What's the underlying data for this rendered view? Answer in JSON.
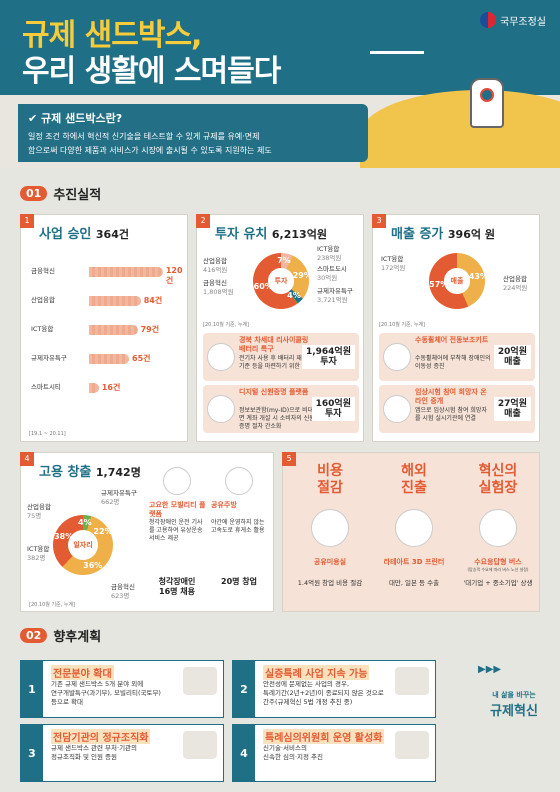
{
  "header": {
    "title_line1": "규제 샌드박스,",
    "title_line2": "우리 생활에 스며들다",
    "logo": "국무조정실",
    "q": "규제 샌드박스란?",
    "desc1": "일정 조건 하에서 혁신적 신기술을 테스트할 수 있게 규제를 유예·면제",
    "desc2": "함으로써 다양한 제품과 서비스가 시장에 출시될 수 있도록 지원하는 제도"
  },
  "section1": {
    "num": "01",
    "title": "추진실적"
  },
  "section2": {
    "num": "02",
    "title": "향후계획"
  },
  "approval": {
    "num": "1",
    "title": "사업 승인",
    "value": "364",
    "unit": "건",
    "note": "[19.1 ~ 20.11]"
  },
  "investment": {
    "num": "2",
    "title": "투자 유치",
    "value": "6,213",
    "unit": "억원",
    "center": "투자",
    "note": "[20.10월 기준, 누계]"
  },
  "sales": {
    "num": "3",
    "title": "매출 증가",
    "value": "396",
    "unit": "억 원",
    "center": "매출",
    "note": "[20.10월 기준, 누계]"
  },
  "jobs": {
    "num": "4",
    "title": "고용 창출",
    "value": "1,742",
    "unit": "명",
    "center": "일자리",
    "note": "[20.10월 기준, 누계]"
  },
  "chart_data": [
    {
      "type": "bar",
      "categories": [
        "금융혁신",
        "산업융합",
        "ICT융합",
        "규제자유특구",
        "스마트시티"
      ],
      "values": [
        120,
        84,
        79,
        65,
        16
      ],
      "value_labels": [
        "120건",
        "84건",
        "79건",
        "65건",
        "16건"
      ]
    },
    {
      "type": "pie",
      "categories": [
        "산업융합",
        "금융혁신",
        "ICT융합",
        "스마트도시",
        "규제자유특구"
      ],
      "values": [
        416,
        1808,
        238,
        30,
        3721
      ],
      "value_labels": [
        "416억원",
        "1,808억원",
        "238억원",
        "30억원",
        "3,721억원"
      ],
      "pct_labels": [
        "7%",
        "29%",
        "4%",
        "",
        "60%"
      ]
    },
    {
      "type": "pie",
      "categories": [
        "ICT융합",
        "산업융합"
      ],
      "values": [
        172,
        224
      ],
      "value_labels": [
        "172억원",
        "224억원"
      ],
      "pct_labels": [
        "43%",
        "57%"
      ]
    },
    {
      "type": "pie",
      "categories": [
        "산업융합",
        "ICT융합",
        "금융혁신",
        "규제자유특구"
      ],
      "values": [
        75,
        382,
        623,
        662
      ],
      "value_labels": [
        "75명",
        "382명",
        "623명",
        "662명"
      ],
      "pct_labels": [
        "4%",
        "22%",
        "36%",
        "38%"
      ]
    }
  ],
  "inv_items": [
    {
      "t": "경북 차세대 리사이클링 배터리 특구",
      "d": "전기차 사용 후 배터리 재사용 기준 등을 마련하기 위한 실증",
      "n": "1,964억원",
      "n2": "투자"
    },
    {
      "t": "디지털 신원증명 플랫폼",
      "d": "정보보관함(my-ID)으로 비대면 계좌 개설 시 소비자의 신원증명 절차 간소화",
      "n": "160억원",
      "n2": "투자"
    }
  ],
  "sales_items": [
    {
      "t": "수동휠체어 전동보조키트",
      "d": "수동휠체어에 부착해 장애인의 이동성 증진",
      "n": "20억원",
      "n2": "매출"
    },
    {
      "t": "임상시험 참여 희망자 온라인 중개",
      "d": "앱으로 임상시험 참여 희망자를 시험 실시기관에 연결",
      "n": "27억원",
      "n2": "매출"
    }
  ],
  "jobs_items": [
    {
      "t": "고요한 모빌리티 플랫폼",
      "d": "청각장애인 운전 기사를 고용하여 유상운송 서비스 제공",
      "n": "청각장애인 16명 채용"
    },
    {
      "t": "공유주방",
      "d": "야간에 운영하지 않는 고속도로 휴게소 활용",
      "n": "20명 창업"
    }
  ],
  "effects": {
    "num": "5",
    "items": [
      {
        "t1": "비용",
        "t2": "절감",
        "name": "공유미용실",
        "d": "1.4억원 창업 비용 절감"
      },
      {
        "t1": "해외",
        "t2": "진출",
        "name": "라테아트 3D 프린터",
        "d": "대만, 일본 등 수출"
      },
      {
        "t1": "혁신의",
        "t2": "실험장",
        "name": "수요응답형 버스",
        "sub": "(탑승객 수요에 따라 버스 노선 설정)",
        "d": "'대기업 + 중소기업' 상생"
      }
    ]
  },
  "plans": [
    {
      "n": "1",
      "t": "전문분야 확대",
      "d1": "기존 규제 샌드박스 5개 분야 외에",
      "d2": "연구개발특구(과기부), 모빌리티(국토부)",
      "d3": "등으로 확대"
    },
    {
      "n": "2",
      "t": "실증특례 사업 지속 가능",
      "d1": "안전성에 문제없는 사업의 경우,",
      "d2": "특례기간(2년+2년)이 종료되지 않은 것으로",
      "d3": "간주(규제혁신 5법 개정 추진 중)"
    },
    {
      "n": "3",
      "t": "전담기관의 정규조직화",
      "d1": "규제 샌드박스 관련 부처·기관의",
      "d2": "정규조직화 및 인원 증원",
      "d3": ""
    },
    {
      "n": "4",
      "t": "특례심의위원회 운영 활성화",
      "d1": "신기술·서비스의",
      "d2": "신속한 심의·지정 추진",
      "d3": ""
    }
  ],
  "slogan": {
    "l1": "내 삶을 바꾸는",
    "l2": "규제혁신"
  }
}
